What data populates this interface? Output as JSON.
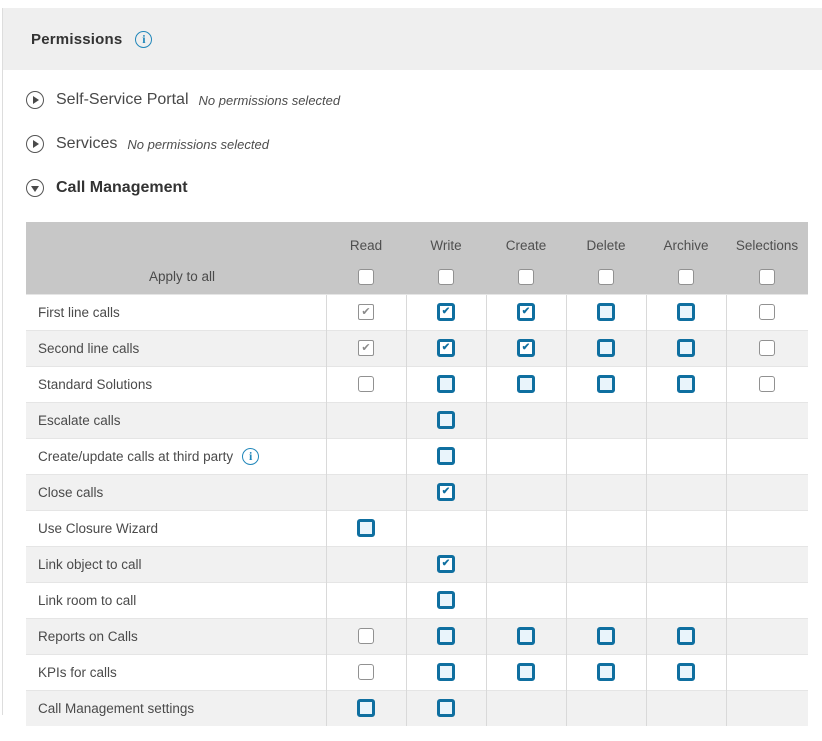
{
  "icons": {
    "info_glyph": "i"
  },
  "colors": {
    "accent_blue": "#0f6fa0",
    "info_blue": "#2187ba",
    "title_bar_bg": "#efefef",
    "table_header_bg": "#c7c7c7",
    "alt_row_bg": "#f1f1f1",
    "checkbox_active_fill": "#e9f4fb"
  },
  "title_bar": {
    "title": "Permissions"
  },
  "sections": [
    {
      "label": "Self-Service Portal",
      "note": "No permissions selected",
      "expanded": false
    },
    {
      "label": "Services",
      "note": "No permissions selected",
      "expanded": false
    },
    {
      "label": "Call Management",
      "note": "",
      "expanded": true
    }
  ],
  "table": {
    "columns": [
      "Read",
      "Write",
      "Create",
      "Delete",
      "Archive",
      "Selections"
    ],
    "apply_row": {
      "label": "Apply to all",
      "cells": [
        "plain",
        "plain",
        "plain",
        "plain",
        "plain",
        "plain"
      ]
    },
    "rows": [
      {
        "label": "First line calls",
        "info": false,
        "cells": [
          "plain-checked",
          "active-checked",
          "active-checked",
          "active",
          "active",
          "plain"
        ]
      },
      {
        "label": "Second line calls",
        "info": false,
        "cells": [
          "plain-checked",
          "active-checked",
          "active-checked",
          "active",
          "active",
          "plain"
        ]
      },
      {
        "label": "Standard Solutions",
        "info": false,
        "cells": [
          "plain",
          "active",
          "active",
          "active",
          "active",
          "plain"
        ]
      },
      {
        "label": "Escalate calls",
        "info": false,
        "cells": [
          "none",
          "active",
          "none",
          "none",
          "none",
          "none"
        ]
      },
      {
        "label": "Create/update calls at third party",
        "info": true,
        "cells": [
          "none",
          "active",
          "none",
          "none",
          "none",
          "none"
        ]
      },
      {
        "label": "Close calls",
        "info": false,
        "cells": [
          "none",
          "active-checked",
          "none",
          "none",
          "none",
          "none"
        ]
      },
      {
        "label": "Use Closure Wizard",
        "info": false,
        "cells": [
          "active",
          "none",
          "none",
          "none",
          "none",
          "none"
        ]
      },
      {
        "label": "Link object to call",
        "info": false,
        "cells": [
          "none",
          "active-checked",
          "none",
          "none",
          "none",
          "none"
        ]
      },
      {
        "label": "Link room to call",
        "info": false,
        "cells": [
          "none",
          "active",
          "none",
          "none",
          "none",
          "none"
        ]
      },
      {
        "label": "Reports on Calls",
        "info": false,
        "cells": [
          "plain",
          "active",
          "active",
          "active",
          "active",
          "none"
        ]
      },
      {
        "label": "KPIs for calls",
        "info": false,
        "cells": [
          "plain",
          "active",
          "active",
          "active",
          "active",
          "none"
        ]
      },
      {
        "label": "Call Management settings",
        "info": false,
        "cells": [
          "active",
          "active",
          "none",
          "none",
          "none",
          "none"
        ]
      }
    ]
  }
}
